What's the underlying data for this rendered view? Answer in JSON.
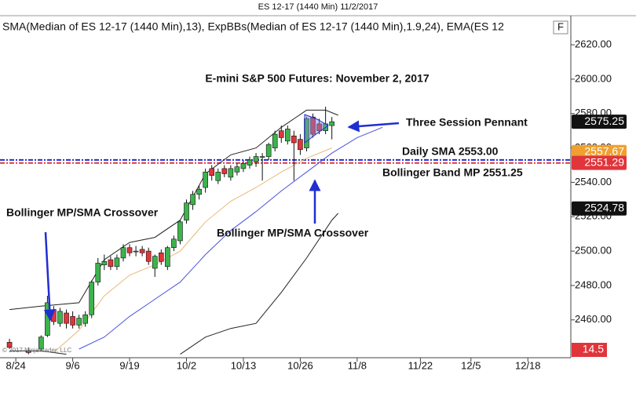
{
  "header": {
    "title": "ES 12-17 (1440 Min)  11/2/2017",
    "indicators": "SMA(Median of ES 12-17 (1440 Min),13), ExpBBs(Median of ES 12-17 (1440 Min),1.9,24), EMA(ES 12",
    "button": "F",
    "copyright": "© 2017 NinjaTrader, LLC"
  },
  "chart_data": {
    "type": "candlestick",
    "title": "E-mini S&P 500 Futures: November 2, 2017",
    "candles": {
      "color_up": "#3cb44b",
      "color_down": "#e0353b",
      "x": [
        -1,
        2,
        4,
        5,
        6,
        7,
        8,
        9,
        10,
        11,
        12,
        13,
        14,
        15,
        16,
        17,
        18,
        19,
        20,
        21,
        22,
        23,
        24,
        25,
        26,
        27,
        28,
        29,
        30,
        31,
        32,
        33,
        34,
        35,
        36,
        37,
        38,
        39,
        40,
        41,
        42,
        43,
        44,
        45,
        46,
        47,
        48,
        49,
        50
      ],
      "open": [
        2447,
        2442,
        2443,
        2451,
        2466,
        2458,
        2464,
        2462,
        2457,
        2458,
        2463,
        2482,
        2492,
        2495,
        2491,
        2496,
        2502,
        2500,
        2501,
        2500,
        2490,
        2499,
        2491,
        2502,
        2506,
        2518,
        2527,
        2533,
        2537,
        2548,
        2541,
        2548,
        2543,
        2546,
        2548,
        2550,
        2552,
        2555,
        2555,
        2560,
        2570,
        2564,
        2567,
        2565,
        2560,
        2578,
        2574,
        2570,
        2573
      ],
      "high": [
        2449,
        2444,
        2451,
        2474,
        2468,
        2467,
        2466,
        2465,
        2463,
        2465,
        2483,
        2496,
        2498,
        2497,
        2498,
        2504,
        2504,
        2503,
        2503,
        2502,
        2498,
        2501,
        2503,
        2509,
        2518,
        2530,
        2535,
        2538,
        2548,
        2550,
        2548,
        2550,
        2550,
        2551,
        2553,
        2555,
        2557,
        2557,
        2563,
        2570,
        2573,
        2573,
        2570,
        2568,
        2578,
        2580,
        2577,
        2584,
        2578
      ],
      "low": [
        2443,
        2440,
        2442,
        2450,
        2457,
        2456,
        2455,
        2455,
        2455,
        2456,
        2461,
        2480,
        2489,
        2489,
        2489,
        2494,
        2497,
        2497,
        2497,
        2492,
        2485,
        2492,
        2489,
        2500,
        2504,
        2516,
        2524,
        2530,
        2534,
        2541,
        2539,
        2543,
        2541,
        2544,
        2546,
        2548,
        2549,
        2541,
        2553,
        2558,
        2563,
        2562,
        2541,
        2556,
        2558,
        2566,
        2568,
        2568,
        2565
      ],
      "close": [
        2444,
        2441,
        2450,
        2470,
        2459,
        2465,
        2458,
        2457,
        2461,
        2463,
        2482,
        2493,
        2494,
        2491,
        2496,
        2502,
        2499,
        2500,
        2499,
        2494,
        2497,
        2494,
        2502,
        2507,
        2517,
        2528,
        2533,
        2536,
        2546,
        2544,
        2546,
        2545,
        2548,
        2549,
        2551,
        2553,
        2555,
        2555,
        2562,
        2568,
        2566,
        2571,
        2563,
        2559,
        2577,
        2568,
        2570,
        2574,
        2575.25
      ]
    },
    "series": [
      {
        "name": "Upper band",
        "color": "#222222",
        "x": [
          -1,
          4,
          10,
          14,
          18,
          22,
          26,
          30,
          34,
          38,
          42,
          46,
          49,
          51
        ],
        "values": [
          2466,
          2468,
          2470,
          2495,
          2505,
          2508,
          2518,
          2545,
          2556,
          2560,
          2572,
          2582,
          2582,
          2579
        ]
      },
      {
        "name": "Lower band",
        "color": "#222222",
        "x": [
          -1,
          4,
          8,
          null,
          26,
          30,
          34,
          38,
          42,
          46,
          50,
          51
        ],
        "values": [
          2442,
          2442,
          2440,
          null,
          2440,
          2450,
          2455,
          2458,
          2476,
          2496,
          2518,
          2522
        ]
      },
      {
        "name": "SMA",
        "color": "#4a52e0",
        "x": [
          10,
          14,
          18,
          22,
          26,
          30,
          34,
          38,
          42,
          46,
          50,
          54,
          58
        ],
        "values": [
          2443,
          2450,
          2462,
          2472,
          2482,
          2498,
          2512,
          2523,
          2535,
          2546,
          2557,
          2566,
          2572
        ]
      },
      {
        "name": "EMA",
        "color": "#e8b87a",
        "x": [
          6,
          10,
          14,
          18,
          22,
          26,
          30,
          34,
          38,
          42,
          46,
          50
        ],
        "values": [
          2441,
          2454,
          2474,
          2486,
          2492,
          2500,
          2517,
          2529,
          2537,
          2546,
          2554,
          2560
        ]
      }
    ],
    "hlines": [
      {
        "value": 2553,
        "color": "#1f2fd0"
      },
      {
        "value": 2551.25,
        "color": "#e0353b"
      }
    ],
    "price_markers": [
      {
        "value": 2575.25,
        "color": "#111111"
      },
      {
        "value": 2557.67,
        "color": "#f0a030"
      },
      {
        "value": 2551.29,
        "color": "#e0353b"
      },
      {
        "value": 2524.78,
        "color": "#111111"
      }
    ],
    "indicator_marker": {
      "value": 14.5,
      "color": "#e0353b"
    },
    "annotations": [
      "Three Session Pennant",
      "Daily SMA 2553.00",
      "Bollinger Band MP 2551.25",
      "Bollinger MP/SMA Crossover",
      "Bollinger MP/SMA Crossover"
    ],
    "xlim": [
      -2.5,
      87.8
    ],
    "ylim": [
      2438,
      2636
    ],
    "yticks": [
      {
        "value": 2460,
        "label": "2460.00"
      },
      {
        "value": 2480,
        "label": "2480.00"
      },
      {
        "value": 2500,
        "label": "2500.00"
      },
      {
        "value": 2520,
        "label": "2520.00"
      },
      {
        "value": 2540,
        "label": "2540.00"
      },
      {
        "value": 2560,
        "label": "2560.00"
      },
      {
        "value": 2580,
        "label": "2580.00"
      },
      {
        "value": 2600,
        "label": "2600.00"
      },
      {
        "value": 2620,
        "label": "2620.00"
      }
    ],
    "xticks": [
      {
        "value": 0,
        "label": "8/24"
      },
      {
        "value": 9,
        "label": "9/6"
      },
      {
        "value": 18,
        "label": "9/19"
      },
      {
        "value": 27,
        "label": "10/2"
      },
      {
        "value": 36,
        "label": "10/13"
      },
      {
        "value": 45,
        "label": "10/26"
      },
      {
        "value": 54,
        "label": "11/8"
      },
      {
        "value": 64,
        "label": "11/22"
      },
      {
        "value": 72,
        "label": "12/5"
      },
      {
        "value": 81,
        "label": "12/18"
      }
    ]
  }
}
